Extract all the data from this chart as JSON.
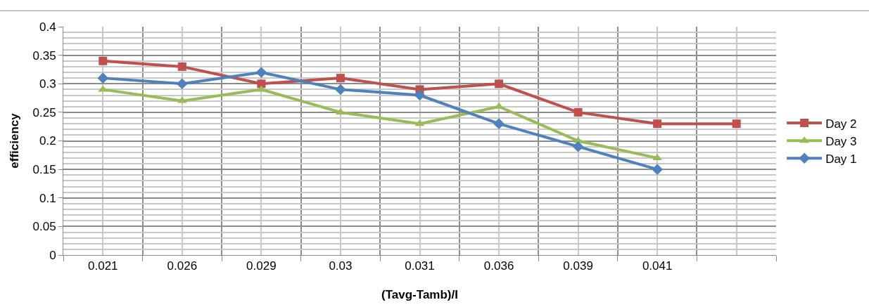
{
  "chart_data": {
    "type": "line",
    "xlabel": "(Tavg-Tamb)/I",
    "ylabel": "efficiency",
    "categories": [
      "0.021",
      "0.026",
      "0.029",
      "0.03",
      "0.031",
      "0.036",
      "0.039",
      "0.041",
      null
    ],
    "series": [
      {
        "name": "Day 2",
        "color": "#c0504d",
        "marker": "square",
        "values": [
          0.34,
          0.33,
          0.3,
          0.31,
          0.29,
          0.3,
          0.25,
          0.23,
          0.23
        ]
      },
      {
        "name": "Day 3",
        "color": "#9bbb59",
        "marker": "triangle",
        "values": [
          0.29,
          0.27,
          0.29,
          0.25,
          0.23,
          0.26,
          0.2,
          0.17,
          null
        ]
      },
      {
        "name": "Day 1",
        "color": "#4f81bd",
        "marker": "diamond",
        "values": [
          0.31,
          0.3,
          0.32,
          0.29,
          0.28,
          0.23,
          0.19,
          0.15,
          null
        ]
      }
    ],
    "ylim": [
      0,
      0.4
    ],
    "yticks": [
      0,
      0.05,
      0.1,
      0.15,
      0.2,
      0.25,
      0.3,
      0.35,
      0.4
    ],
    "grid": true,
    "legend": "right",
    "line_style": "solid"
  }
}
